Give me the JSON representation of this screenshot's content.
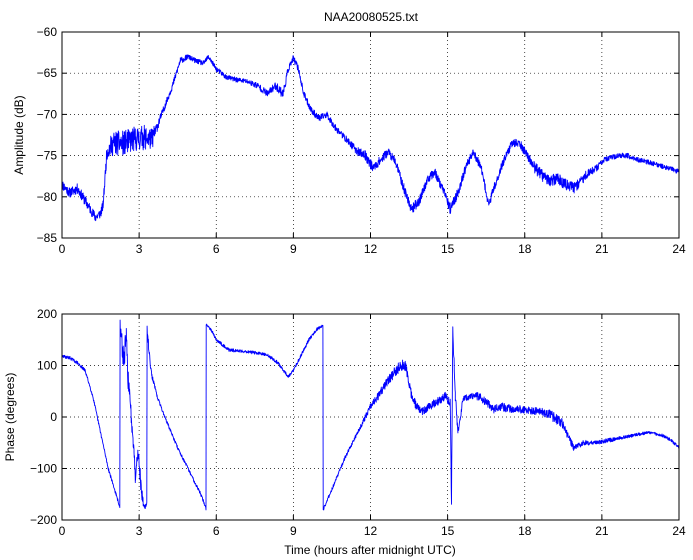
{
  "chart_data": [
    {
      "type": "line",
      "title": "NAA20080525.txt",
      "xlabel": "",
      "ylabel": "Amplitude (dB)",
      "xlim": [
        0,
        24
      ],
      "ylim": [
        -85,
        -60
      ],
      "xticks": [
        0,
        3,
        6,
        9,
        12,
        15,
        18,
        21,
        24
      ],
      "yticks": [
        -85,
        -80,
        -75,
        -70,
        -65,
        -60
      ],
      "xtick_labels": [
        "0",
        "3",
        "6",
        "9",
        "12",
        "15",
        "18",
        "21",
        "24"
      ],
      "ytick_labels": [
        "−85",
        "−80",
        "−75",
        "−70",
        "−65",
        "−60"
      ],
      "grid": true,
      "line_color": "#0000ff",
      "series": [
        {
          "x": [
            0.0,
            0.3,
            0.6,
            0.9,
            1.1,
            1.3,
            1.5,
            1.6,
            1.7,
            1.75,
            2.0,
            2.4,
            2.8,
            3.2,
            3.5,
            3.7,
            4.0,
            4.3,
            4.6,
            4.9,
            5.2,
            5.5,
            5.7,
            6.0,
            6.4,
            6.8,
            7.2,
            7.6,
            8.0,
            8.3,
            8.6,
            8.8,
            9.0,
            9.2,
            9.4,
            9.7,
            10.0,
            10.3,
            10.6,
            10.9,
            11.2,
            11.5,
            11.8,
            12.1,
            12.4,
            12.7,
            13.0,
            13.3,
            13.6,
            13.9,
            14.2,
            14.5,
            14.8,
            15.1,
            15.4,
            15.7,
            16.0,
            16.3,
            16.6,
            16.9,
            17.2,
            17.5,
            17.8,
            18.1,
            18.4,
            18.7,
            19.0,
            19.3,
            19.6,
            19.9,
            20.2,
            20.5,
            20.8,
            21.1,
            21.4,
            21.7,
            22.0,
            22.4,
            22.8,
            23.2,
            23.6,
            24.0
          ],
          "y": [
            -78.5,
            -79.5,
            -79.0,
            -80.5,
            -81.5,
            -82.5,
            -82.0,
            -81.0,
            -76.5,
            -74.5,
            -73.5,
            -73.5,
            -73.0,
            -72.8,
            -73.0,
            -71.5,
            -69.0,
            -66.5,
            -63.5,
            -63.0,
            -63.5,
            -63.8,
            -63.0,
            -64.5,
            -65.5,
            -65.8,
            -66.0,
            -66.5,
            -67.5,
            -66.5,
            -67.5,
            -64.5,
            -63.2,
            -64.5,
            -67.5,
            -69.5,
            -70.5,
            -70.0,
            -71.5,
            -72.5,
            -73.5,
            -74.5,
            -75.0,
            -76.5,
            -75.5,
            -74.5,
            -76.0,
            -79.0,
            -81.5,
            -80.5,
            -78.0,
            -77.0,
            -79.0,
            -81.5,
            -79.5,
            -76.5,
            -74.5,
            -76.5,
            -81.0,
            -78.0,
            -75.5,
            -73.5,
            -73.5,
            -75.0,
            -76.5,
            -77.5,
            -78.0,
            -77.8,
            -78.5,
            -79.0,
            -78.0,
            -77.0,
            -76.5,
            -75.5,
            -75.2,
            -75.0,
            -75.0,
            -75.5,
            -75.8,
            -76.2,
            -76.5,
            -77.0
          ],
          "noise": [
            0.6,
            0.6,
            0.6,
            0.6,
            0.6,
            0.6,
            0.6,
            0.6,
            0.8,
            1.0,
            1.5,
            1.5,
            1.5,
            1.5,
            1.3,
            0.6,
            0.4,
            0.4,
            0.4,
            0.3,
            0.3,
            0.3,
            0.3,
            0.3,
            0.3,
            0.3,
            0.3,
            0.4,
            0.4,
            0.5,
            0.6,
            0.4,
            0.4,
            0.4,
            0.4,
            0.4,
            0.4,
            0.4,
            0.4,
            0.4,
            0.4,
            0.5,
            0.6,
            0.6,
            0.5,
            0.5,
            0.5,
            0.6,
            0.6,
            0.6,
            0.5,
            0.5,
            0.6,
            0.6,
            0.6,
            0.5,
            0.5,
            0.5,
            0.6,
            0.5,
            0.5,
            0.5,
            0.5,
            0.5,
            0.7,
            0.7,
            0.7,
            0.7,
            0.7,
            0.7,
            0.6,
            0.5,
            0.4,
            0.3,
            0.3,
            0.3,
            0.3,
            0.3,
            0.3,
            0.3,
            0.3,
            0.3
          ]
        }
      ]
    },
    {
      "type": "line",
      "title": "",
      "xlabel": "Time (hours after midnight UTC)",
      "ylabel": "Phase (degrees)",
      "xlim": [
        0,
        24
      ],
      "ylim": [
        -200,
        200
      ],
      "xticks": [
        0,
        3,
        6,
        9,
        12,
        15,
        18,
        21,
        24
      ],
      "yticks": [
        -200,
        -100,
        0,
        100,
        200
      ],
      "xtick_labels": [
        "0",
        "3",
        "6",
        "9",
        "12",
        "15",
        "18",
        "21",
        "24"
      ],
      "ytick_labels": [
        "−200",
        "−100",
        "0",
        "100",
        "200"
      ],
      "grid": true,
      "line_color": "#0000ff",
      "series": [
        {
          "x": [
            0.0,
            0.3,
            0.6,
            0.9,
            1.2,
            1.5,
            1.8,
            2.1,
            2.25,
            2.26,
            2.4,
            2.5,
            2.6,
            2.7,
            2.8,
            2.85,
            2.95,
            3.1,
            3.2,
            3.3,
            3.31,
            3.4,
            3.5,
            3.7,
            4.0,
            4.5,
            5.0,
            5.4,
            5.6,
            5.61,
            5.8,
            6.0,
            6.5,
            7.0,
            7.5,
            8.0,
            8.4,
            8.7,
            8.8,
            9.0,
            9.3,
            9.6,
            9.9,
            10.15,
            10.16,
            10.5,
            11.0,
            11.5,
            12.0,
            12.3,
            12.6,
            12.9,
            13.2,
            13.4,
            13.6,
            13.8,
            14.0,
            14.3,
            14.6,
            14.9,
            15.1,
            15.15,
            15.2,
            15.3,
            15.4,
            15.6,
            15.9,
            16.2,
            16.5,
            16.8,
            17.1,
            17.5,
            18.0,
            18.5,
            19.0,
            19.5,
            19.9,
            20.3,
            20.8,
            21.3,
            21.8,
            22.3,
            22.8,
            23.3,
            23.7,
            24.0
          ],
          "y": [
            118,
            115,
            105,
            90,
            40,
            -30,
            -100,
            -150,
            -175,
            175,
            110,
            150,
            50,
            0,
            -60,
            -120,
            -60,
            -150,
            -175,
            -170,
            170,
            120,
            80,
            40,
            0,
            -60,
            -110,
            -150,
            -178,
            180,
            170,
            150,
            130,
            128,
            125,
            120,
            105,
            85,
            78,
            90,
            120,
            150,
            170,
            178,
            -180,
            -140,
            -80,
            -30,
            20,
            40,
            65,
            85,
            100,
            95,
            40,
            20,
            10,
            20,
            30,
            40,
            30,
            -170,
            170,
            40,
            -30,
            35,
            40,
            40,
            30,
            15,
            20,
            15,
            15,
            10,
            5,
            -15,
            -60,
            -50,
            -50,
            -45,
            -40,
            -35,
            -30,
            -35,
            -45,
            -60
          ],
          "noise": [
            3,
            3,
            3,
            3,
            3,
            3,
            3,
            3,
            3,
            15,
            25,
            25,
            25,
            20,
            15,
            10,
            15,
            15,
            5,
            5,
            8,
            10,
            5,
            3,
            3,
            3,
            3,
            3,
            3,
            2,
            3,
            3,
            3,
            3,
            3,
            3,
            3,
            3,
            3,
            3,
            3,
            3,
            3,
            3,
            3,
            3,
            3,
            4,
            6,
            8,
            8,
            10,
            12,
            12,
            10,
            8,
            8,
            8,
            8,
            8,
            10,
            10,
            10,
            10,
            8,
            6,
            6,
            8,
            8,
            8,
            8,
            8,
            8,
            8,
            10,
            10,
            6,
            5,
            4,
            4,
            3,
            3,
            3,
            3,
            3,
            3
          ]
        }
      ]
    }
  ]
}
